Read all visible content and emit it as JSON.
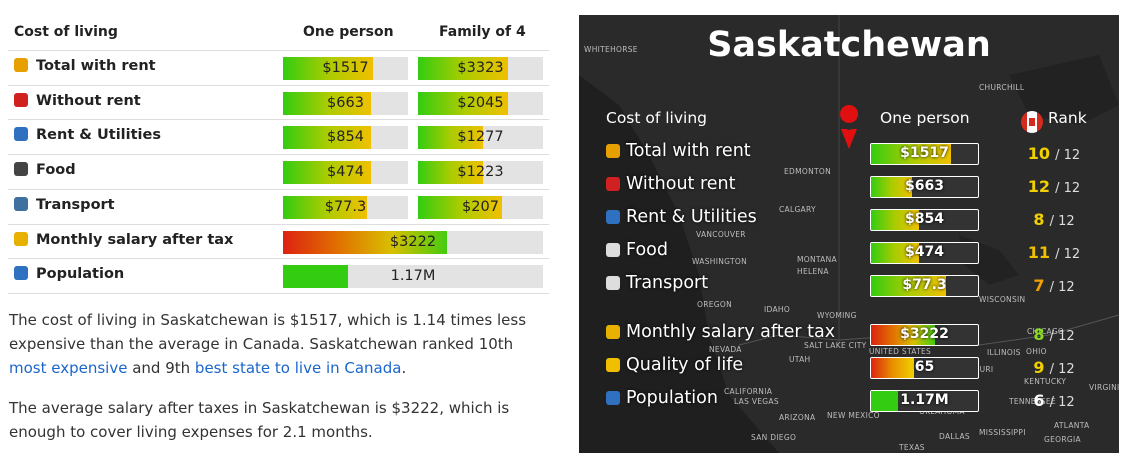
{
  "left_table": {
    "headers": [
      "Cost of living",
      "One person",
      "Family of 4"
    ],
    "rows": [
      {
        "label": "Total with rent",
        "one_person": "$1517",
        "family": "$3323"
      },
      {
        "label": "Without rent",
        "one_person": "$663",
        "family": "$2045"
      },
      {
        "label": "Rent & Utilities",
        "one_person": "$854",
        "family": "$1277"
      },
      {
        "label": "Food",
        "one_person": "$474",
        "family": "$1223"
      },
      {
        "label": "Transport",
        "one_person": "$77.3",
        "family": "$207"
      }
    ],
    "wide_rows": [
      {
        "label": "Monthly salary after tax",
        "value": "$3222"
      },
      {
        "label": "Population",
        "value": "1.17M"
      }
    ]
  },
  "paragraphs": [
    [
      "The cost of living in Saskatchewan is $1517, which is 1.14 times less expensive than the average in Canada. Saskatchewan ranked 10th ",
      {
        "link": "most expensive"
      },
      " and 9th ",
      {
        "link": "best state to live in Canada"
      },
      "."
    ],
    [
      "The average salary after taxes in Saskatchewan is $3222, which is enough to cover living expenses for 2.1 months."
    ]
  ],
  "card": {
    "title": "Saskatchewan",
    "headers": [
      "Cost of living",
      "One person",
      "Rank"
    ],
    "rows": [
      {
        "label": "Total with rent",
        "value": "$1517",
        "rank": "10",
        "rank_of": "/ 12"
      },
      {
        "label": "Without rent",
        "value": "$663",
        "rank": "12",
        "rank_of": "/ 12"
      },
      {
        "label": "Rent & Utilities",
        "value": "$854",
        "rank": "8",
        "rank_of": "/ 12"
      },
      {
        "label": "Food",
        "value": "$474",
        "rank": "11",
        "rank_of": "/ 12"
      },
      {
        "label": "Transport",
        "value": "$77.3",
        "rank": "7",
        "rank_of": "/ 12"
      },
      {
        "label": "Monthly salary after tax",
        "value": "$3222",
        "rank": "8",
        "rank_of": "/ 12"
      },
      {
        "label": "Quality of life",
        "value": "65",
        "rank": "9",
        "rank_of": "/ 12"
      },
      {
        "label": "Population",
        "value": "1.17M",
        "rank": "6",
        "rank_of": "/ 12"
      }
    ],
    "map_labels": [
      "WHITEHORSE",
      "CHURCHILL",
      "EDMONTON",
      "CALGARY",
      "VANCOUVER",
      "WASHINGTON",
      "MONTANA",
      "HELENA",
      "OREGON",
      "IDAHO",
      "WYOMING",
      "NEVADA",
      "UTAH",
      "SALT LAKE CITY",
      "UNITED STATES",
      "CALIFORNIA",
      "LAS VEGAS",
      "ARIZONA",
      "NEW MEXICO",
      "SAN DIEGO",
      "DALLAS",
      "TEXAS",
      "OKLAHOMA",
      "IOWA",
      "MISSOURI",
      "ILLINOIS",
      "WISCONSIN",
      "CHICAGO",
      "OHIO",
      "KENTUCKY",
      "VIRGINIA",
      "TENNESSEE",
      "GEORGIA",
      "ATLANTA",
      "MISSISSIPPI"
    ]
  }
}
